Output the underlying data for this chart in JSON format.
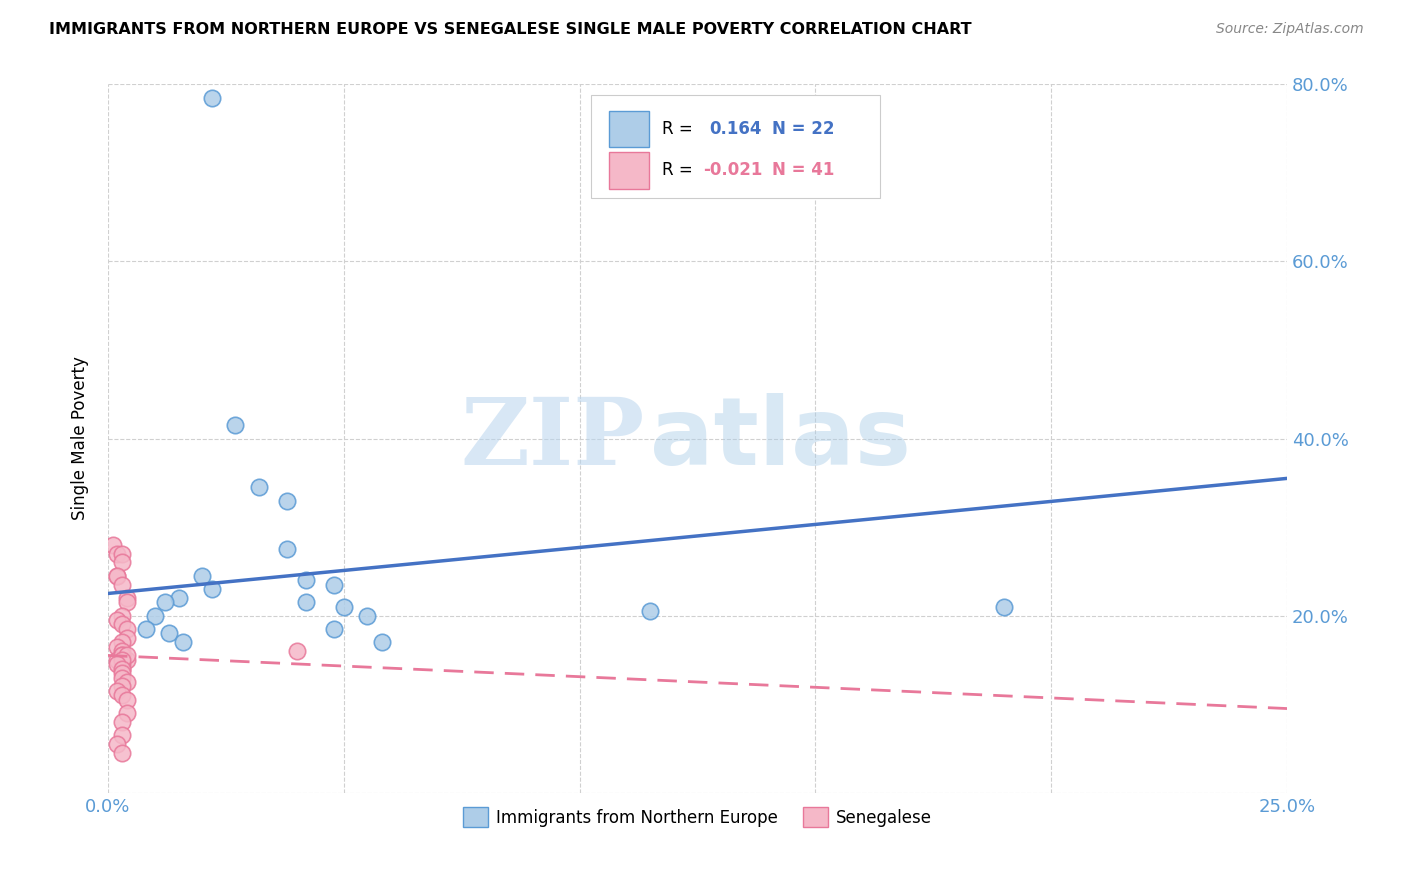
{
  "title": "IMMIGRANTS FROM NORTHERN EUROPE VS SENEGALESE SINGLE MALE POVERTY CORRELATION CHART",
  "source": "Source: ZipAtlas.com",
  "ylabel": "Single Male Poverty",
  "xlim": [
    0.0,
    0.25
  ],
  "ylim": [
    0.0,
    0.8
  ],
  "xticks": [
    0.0,
    0.05,
    0.1,
    0.15,
    0.2,
    0.25
  ],
  "yticks": [
    0.0,
    0.2,
    0.4,
    0.6,
    0.8
  ],
  "blue_R": 0.164,
  "blue_N": 22,
  "pink_R": -0.021,
  "pink_N": 41,
  "blue_color": "#aecde8",
  "pink_color": "#f5b8c8",
  "blue_edge_color": "#5b9bd5",
  "pink_edge_color": "#e8789a",
  "blue_line_color": "#4472c4",
  "pink_line_color": "#e06080",
  "background_color": "#ffffff",
  "grid_color": "#d0d0d0",
  "watermark_zip": "ZIP",
  "watermark_atlas": "atlas",
  "legend_label_blue": "Immigrants from Northern Europe",
  "legend_label_pink": "Senegalese",
  "blue_line_y0": 0.225,
  "blue_line_y1": 0.355,
  "pink_line_y0": 0.155,
  "pink_line_y1": 0.095,
  "blue_points_x": [
    0.022,
    0.027,
    0.032,
    0.038,
    0.038,
    0.02,
    0.022,
    0.015,
    0.012,
    0.01,
    0.008,
    0.013,
    0.016,
    0.042,
    0.048,
    0.042,
    0.05,
    0.055,
    0.048,
    0.115,
    0.19,
    0.058
  ],
  "blue_points_y": [
    0.785,
    0.415,
    0.345,
    0.33,
    0.275,
    0.245,
    0.23,
    0.22,
    0.215,
    0.2,
    0.185,
    0.18,
    0.17,
    0.24,
    0.235,
    0.215,
    0.21,
    0.2,
    0.185,
    0.205,
    0.21,
    0.17
  ],
  "pink_points_x": [
    0.001,
    0.002,
    0.002,
    0.003,
    0.003,
    0.002,
    0.003,
    0.004,
    0.004,
    0.003,
    0.002,
    0.003,
    0.004,
    0.004,
    0.003,
    0.002,
    0.003,
    0.003,
    0.003,
    0.004,
    0.003,
    0.003,
    0.002,
    0.003,
    0.004,
    0.003,
    0.002,
    0.003,
    0.003,
    0.003,
    0.004,
    0.003,
    0.002,
    0.003,
    0.004,
    0.004,
    0.003,
    0.003,
    0.002,
    0.003,
    0.04
  ],
  "pink_points_y": [
    0.28,
    0.27,
    0.245,
    0.27,
    0.26,
    0.245,
    0.235,
    0.22,
    0.215,
    0.2,
    0.195,
    0.19,
    0.185,
    0.175,
    0.17,
    0.165,
    0.16,
    0.155,
    0.15,
    0.15,
    0.145,
    0.14,
    0.15,
    0.155,
    0.155,
    0.15,
    0.145,
    0.14,
    0.135,
    0.13,
    0.125,
    0.12,
    0.115,
    0.11,
    0.105,
    0.09,
    0.08,
    0.065,
    0.055,
    0.045,
    0.16
  ]
}
